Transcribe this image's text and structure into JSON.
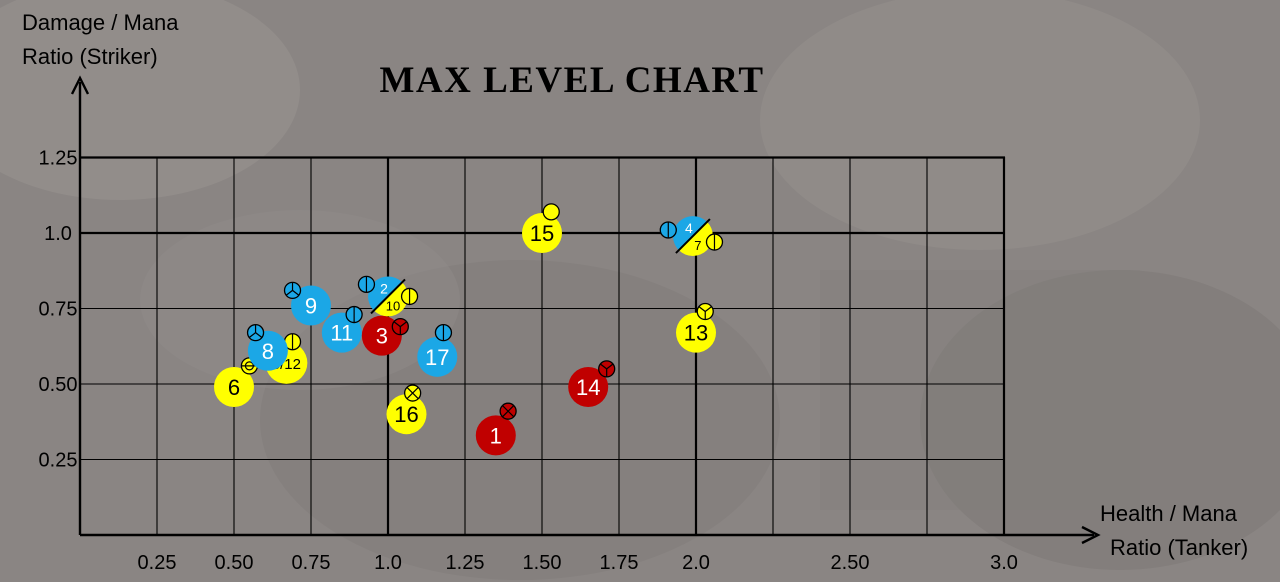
{
  "chart_data": {
    "type": "scatter",
    "title": "MAX LEVEL CHART",
    "ylabel_lines": [
      "Damage / Mana",
      "Ratio (Striker)"
    ],
    "xlabel_lines": [
      "Health / Mana",
      "Ratio (Tanker)"
    ],
    "x_ticks": [
      "0.25",
      "0.50",
      "0.75",
      "1.0",
      "1.25",
      "1.50",
      "1.75",
      "2.0",
      "2.50",
      "3.0"
    ],
    "y_ticks": [
      "1.25",
      "1.0",
      "0.75",
      "0.50",
      "0.25"
    ],
    "xlim": [
      0,
      3.0
    ],
    "ylim": [
      0,
      1.25
    ],
    "grid": true,
    "colors": {
      "red": "#c00000",
      "blue": "#1ba7e6",
      "yellow": "#ffff00",
      "line": "#000000"
    },
    "points": [
      {
        "label": "1",
        "x": 1.35,
        "y": 0.33,
        "color": "red",
        "icon": {
          "dx": 0.04,
          "dy": 0.08,
          "symbol": "cross-circle-icon"
        }
      },
      {
        "label": "3",
        "x": 0.98,
        "y": 0.66,
        "color": "red",
        "icon": {
          "dx": 0.06,
          "dy": 0.03,
          "symbol": "tri-circle-icon"
        }
      },
      {
        "label": "14",
        "x": 1.65,
        "y": 0.49,
        "color": "red",
        "icon": {
          "dx": 0.06,
          "dy": 0.06,
          "symbol": "tri-circle-icon"
        }
      },
      {
        "label": "6",
        "x": 0.5,
        "y": 0.49,
        "color": "yellow",
        "icon": {
          "dx": 0.05,
          "dy": 0.07,
          "symbol": "ring-circle-icon"
        }
      },
      {
        "label": "5/12",
        "x": 0.67,
        "y": 0.57,
        "color": "yellow",
        "icon": {
          "dx": 0.02,
          "dy": 0.07,
          "symbol": "half-circle-icon"
        }
      },
      {
        "label": "16",
        "x": 1.06,
        "y": 0.4,
        "color": "yellow",
        "icon": {
          "dx": 0.02,
          "dy": 0.07,
          "symbol": "cross-circle-icon"
        }
      },
      {
        "label": "15",
        "x": 1.5,
        "y": 1.0,
        "color": "yellow",
        "icon": {
          "dx": 0.03,
          "dy": 0.07,
          "symbol": "plain-circle-icon"
        }
      },
      {
        "label": "13",
        "x": 2.0,
        "y": 0.67,
        "color": "yellow",
        "icon": {
          "dx": 0.03,
          "dy": 0.07,
          "symbol": "tri-circle-icon"
        }
      },
      {
        "label": "9",
        "x": 0.75,
        "y": 0.76,
        "color": "blue",
        "icon": {
          "dx": -0.06,
          "dy": 0.05,
          "symbol": "peace-circle-icon"
        }
      },
      {
        "label": "11",
        "x": 0.85,
        "y": 0.67,
        "color": "blue",
        "icon": {
          "dx": 0.04,
          "dy": 0.06,
          "symbol": "line-circle-icon"
        }
      },
      {
        "label": "17",
        "x": 1.16,
        "y": 0.59,
        "color": "blue",
        "icon": {
          "dx": 0.02,
          "dy": 0.08,
          "symbol": "line-circle-icon"
        }
      },
      {
        "label": "8",
        "x": 0.61,
        "y": 0.61,
        "color": "blue",
        "icon": {
          "dx": -0.04,
          "dy": 0.06,
          "symbol": "peace-circle-icon"
        }
      }
    ],
    "split_points": [
      {
        "top_label": "2",
        "bottom_label": "10",
        "x": 1.0,
        "y": 0.79,
        "top_color": "blue",
        "bottom_color": "yellow",
        "top_icon": {
          "dx": -0.07,
          "dy": 0.04,
          "symbol": "line-circle-icon"
        },
        "bottom_icon": {
          "dx": 0.07,
          "dy": 0.0,
          "symbol": "half-circle-icon"
        }
      },
      {
        "top_label": "4",
        "bottom_label": "7",
        "x": 1.99,
        "y": 0.99,
        "top_color": "blue",
        "bottom_color": "yellow",
        "top_icon": {
          "dx": -0.08,
          "dy": 0.02,
          "symbol": "line-circle-icon"
        },
        "bottom_icon": {
          "dx": 0.07,
          "dy": -0.02,
          "symbol": "half-circle-icon"
        }
      }
    ]
  }
}
